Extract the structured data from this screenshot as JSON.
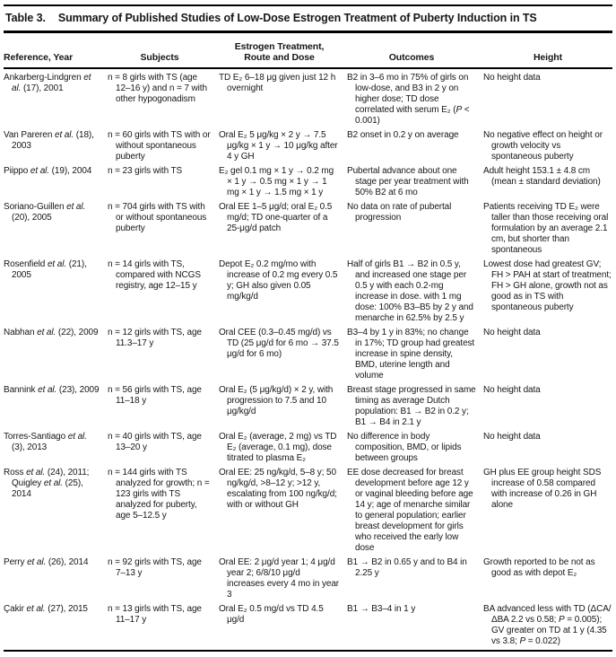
{
  "table": {
    "label": "Table 3.",
    "title": "Summary of Published Studies of Low-Dose Estrogen Treatment of Puberty Induction in TS",
    "columns": [
      "Reference, Year",
      "Subjects",
      "Estrogen Treatment,\nRoute and Dose",
      "Outcomes",
      "Height"
    ],
    "rows": [
      {
        "ref": "Ankarberg-Lindgren *et al.* (17), 2001",
        "subjects": "n = 8 girls with TS (age 12–16 y) and n = 7 with other hypogonadism",
        "treatment": "TD E₂ 6–18 μg given just 12 h overnight",
        "outcomes": "B2 in 3–6 mo in 75% of girls on low-dose, and B3 in 2 y on higher dose; TD dose correlated with serum E₂ (*P* < 0.001)",
        "height": "No height data"
      },
      {
        "ref": "Van Pareren *et al.* (18), 2003",
        "subjects": "n = 60 girls with TS with or without spontaneous puberty",
        "treatment": "Oral E₂ 5 μg/kg × 2 y → 7.5 μg/kg × 1 y → 10 μg/kg after 4 y GH",
        "outcomes": "B2 onset in 0.2 y on average",
        "height": "No negative effect on height or growth velocity vs spontaneous puberty"
      },
      {
        "ref": "Piippo *et al.* (19), 2004",
        "subjects": "n = 23 girls with TS",
        "treatment": "E₂ gel 0.1 mg × 1 y → 0.2 mg × 1 y → 0.5 mg × 1 y → 1 mg × 1 y → 1.5 mg × 1 y",
        "outcomes": "Pubertal advance about one stage per year treatment with 50% B2 at 6 mo",
        "height": "Adult height 153.1 ± 4.8 cm (mean ± standard deviation)"
      },
      {
        "ref": "Soriano-Guillen *et al.* (20), 2005",
        "subjects": "n = 704 girls with TS with or without spontaneous puberty",
        "treatment": "Oral EE 1–5 μg/d; oral E₂ 0.5 mg/d; TD one-quarter of a 25-μg/d patch",
        "outcomes": "No data on rate of pubertal progression",
        "height": "Patients receiving TD E₂ were taller than those receiving oral formulation by an average 2.1 cm, but shorter than spontaneous"
      },
      {
        "ref": "Rosenfield *et al.* (21), 2005",
        "subjects": "n = 14 girls with TS, compared with NCGS registry, age 12–15 y",
        "treatment": "Depot E₂ 0.2 mg/mo with increase of 0.2 mg every 0.5 y; GH also given 0.05 mg/kg/d",
        "outcomes": "Half of girls B1 → B2 in 0.5 y, and increased one stage per 0.5 y with each 0.2-mg increase in dose. with 1 mg dose: 100% B3–B5 by 2 y and menarche in 62.5% by 2.5 y",
        "height": "Lowest dose had greatest GV; FH > PAH at start of treatment; FH > GH alone, growth not as good as in TS with spontaneous puberty"
      },
      {
        "ref": "Nabhan *et al.* (22), 2009",
        "subjects": "n = 12 girls with TS, age 11.3–17 y",
        "treatment": "Oral CEE (0.3–0.45 mg/d) vs TD (25 μg/d for 6 mo → 37.5 μg/d for 6 mo)",
        "outcomes": "B3–4 by 1 y in 83%; no change in 17%; TD group had greatest increase in spine density, BMD, uterine length and volume",
        "height": "No height data"
      },
      {
        "ref": "Bannink *et al.* (23), 2009",
        "subjects": "n = 56 girls with TS, age 11–18 y",
        "treatment": "Oral E₂ (5 μg/kg/d) × 2 y, with progression to 7.5 and 10 μg/kg/d",
        "outcomes": "Breast stage progressed in same timing as average Dutch population: B1 → B2 in 0.2 y; B1 → B4 in 2.1 y",
        "height": "No height data"
      },
      {
        "ref": "Torres-Santiago *et al.* (3), 2013",
        "subjects": "n = 40 girls with TS, age 13–20 y",
        "treatment": "Oral E₂ (average, 2 mg) vs TD E₂ (average, 0.1 mg), dose titrated to plasma E₂",
        "outcomes": "No difference in body composition, BMD, or lipids between groups",
        "height": "No height data"
      },
      {
        "ref": "Ross *et al.* (24), 2011; Quigley *et al.* (25), 2014",
        "subjects": "n = 144 girls with TS analyzed for growth; n = 123 girls with TS analyzed for puberty, age 5–12.5 y",
        "treatment": "Oral EE: 25 ng/kg/d, 5–8 y; 50 ng/kg/d, >8–12 y; >12 y, escalating from 100 ng/kg/d; with or without GH",
        "outcomes": "EE dose decreased for breast development before age 12 y or vaginal bleeding before age 14 y; age of menarche similar to general population; earlier breast development for girls who received the early low dose",
        "height": "GH plus EE group height SDS increase of 0.58 compared with increase of 0.26 in GH alone"
      },
      {
        "ref": "Perry *et al.* (26), 2014",
        "subjects": "n = 92 girls with TS, age 7–13 y",
        "treatment": "Oral EE: 2 μg/d year 1; 4 μg/d year 2; 6/8/10 μg/d increases every 4 mo in year 3",
        "outcomes": "B1 → B2 in 0.65 y and to B4 in 2.25 y",
        "height": "Growth reported to be not as good as with depot E₂"
      },
      {
        "ref": "Çakir *et al.* (27), 2015",
        "subjects": "n = 13 girls with TS, age 11–17 y",
        "treatment": "Oral E₂ 0.5 mg/d vs TD 4.5 μg/d",
        "outcomes": "B1 → B3–4 in 1 y",
        "height": "BA advanced less with TD (ΔCA/ΔBA 2.2 vs 0.58; *P* = 0.005); GV greater on TD at 1 y (4.35 vs 3.8; *P* = 0.022)"
      }
    ]
  }
}
